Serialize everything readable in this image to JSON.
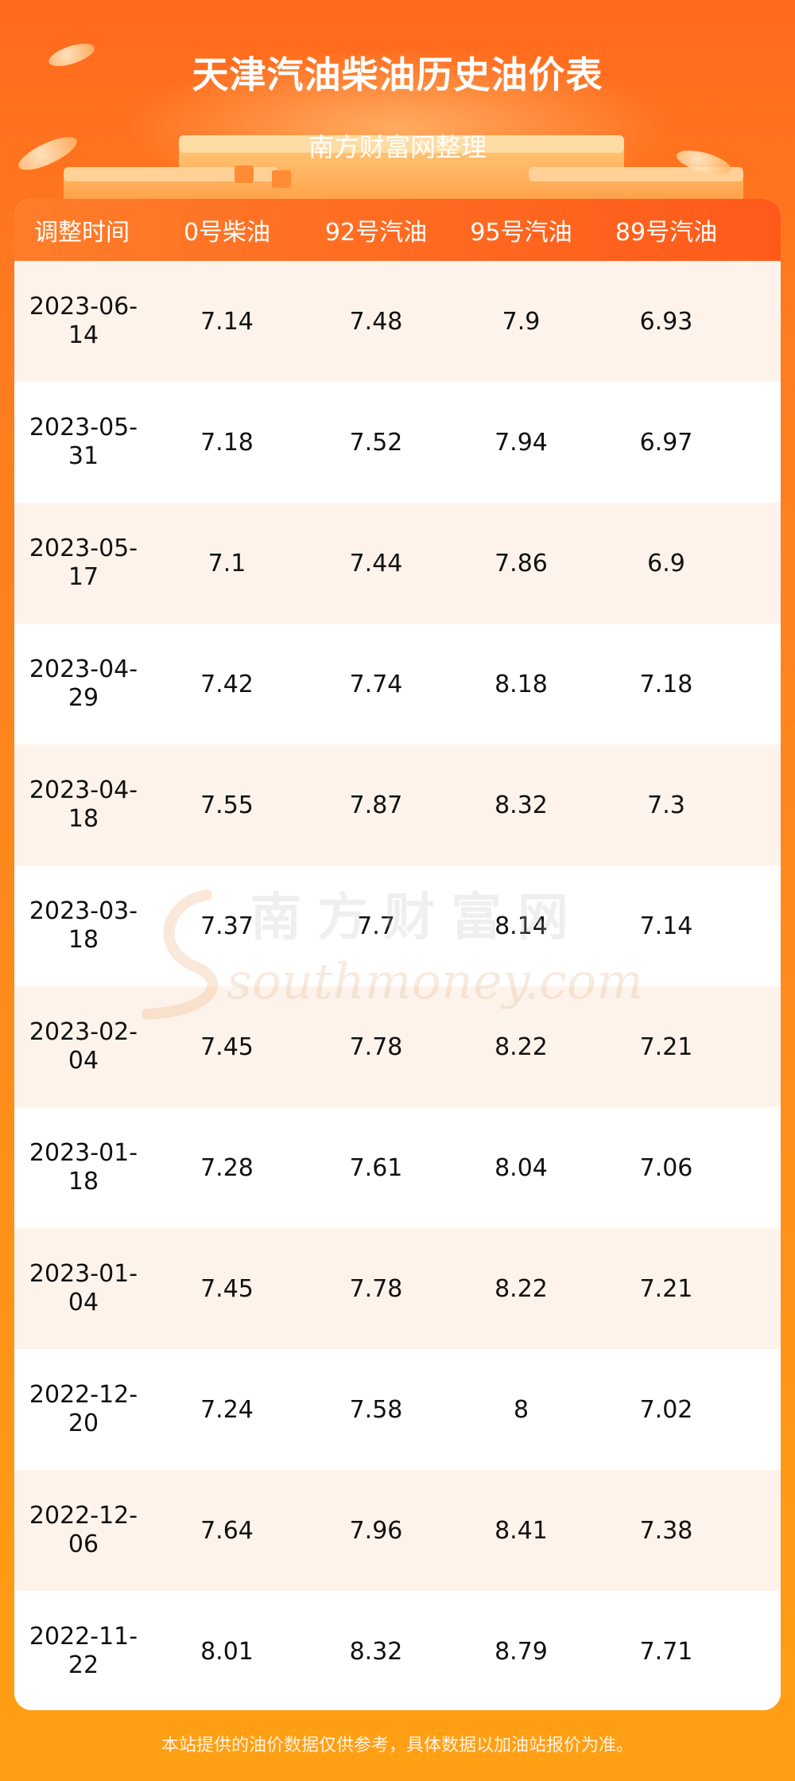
{
  "header": {
    "title": "天津汽油柴油历史油价表",
    "subtitle": "南方财富网整理"
  },
  "table": {
    "columns": [
      "调整时间",
      "0号柴油",
      "92号汽油",
      "95号汽油",
      "89号汽油"
    ],
    "rows": [
      {
        "date": "2023-06-14",
        "diesel0": "7.14",
        "gas92": "7.48",
        "gas95": "7.9",
        "gas89": "6.93"
      },
      {
        "date": "2023-05-31",
        "diesel0": "7.18",
        "gas92": "7.52",
        "gas95": "7.94",
        "gas89": "6.97"
      },
      {
        "date": "2023-05-17",
        "diesel0": "7.1",
        "gas92": "7.44",
        "gas95": "7.86",
        "gas89": "6.9"
      },
      {
        "date": "2023-04-29",
        "diesel0": "7.42",
        "gas92": "7.74",
        "gas95": "8.18",
        "gas89": "7.18"
      },
      {
        "date": "2023-04-18",
        "diesel0": "7.55",
        "gas92": "7.87",
        "gas95": "8.32",
        "gas89": "7.3"
      },
      {
        "date": "2023-03-18",
        "diesel0": "7.37",
        "gas92": "7.7",
        "gas95": "8.14",
        "gas89": "7.14"
      },
      {
        "date": "2023-02-04",
        "diesel0": "7.45",
        "gas92": "7.78",
        "gas95": "8.22",
        "gas89": "7.21"
      },
      {
        "date": "2023-01-18",
        "diesel0": "7.28",
        "gas92": "7.61",
        "gas95": "8.04",
        "gas89": "7.06"
      },
      {
        "date": "2023-01-04",
        "diesel0": "7.45",
        "gas92": "7.78",
        "gas95": "8.22",
        "gas89": "7.21"
      },
      {
        "date": "2022-12-20",
        "diesel0": "7.24",
        "gas92": "7.58",
        "gas95": "8",
        "gas89": "7.02"
      },
      {
        "date": "2022-12-06",
        "diesel0": "7.64",
        "gas92": "7.96",
        "gas95": "8.41",
        "gas89": "7.38"
      },
      {
        "date": "2022-11-22",
        "diesel0": "8.01",
        "gas92": "8.32",
        "gas95": "8.79",
        "gas89": "7.71"
      }
    ]
  },
  "watermark": {
    "cn": "南方财富网",
    "en": "southmoney.com"
  },
  "footer": {
    "note": "本站提供的油价数据仅供参考，具体数据以加油站报价为准。"
  },
  "colors": {
    "brand_orange": "#ff6a1e",
    "header_gradient_end": "#ff5a1a",
    "row_tint": "#fef3ea"
  }
}
